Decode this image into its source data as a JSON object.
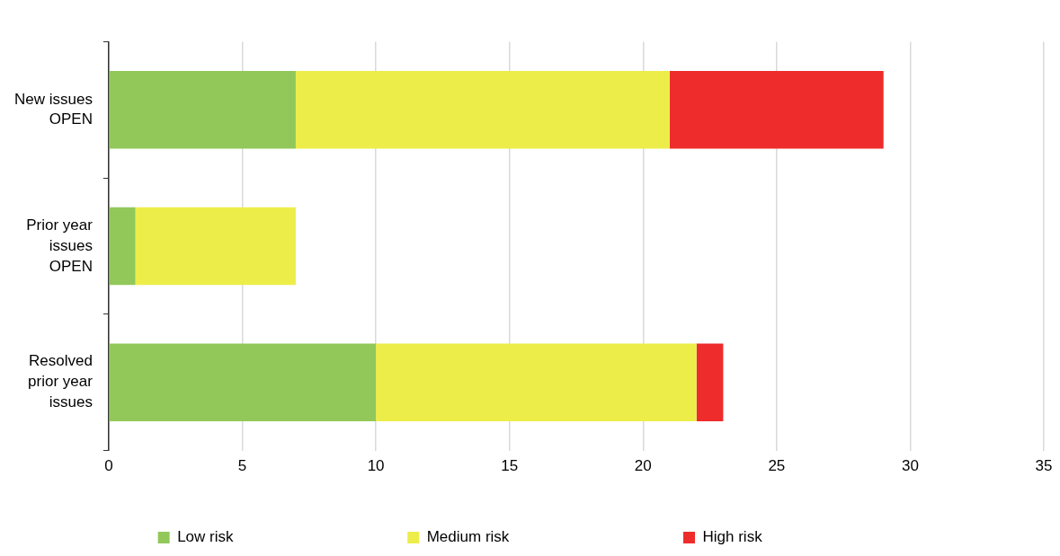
{
  "chart_data": {
    "type": "bar",
    "orientation": "horizontal",
    "stacked": true,
    "categories": [
      "New issues OPEN",
      "Prior year issues OPEN",
      "Resolved prior year issues"
    ],
    "series": [
      {
        "name": "Low risk",
        "color": "#92c85a",
        "values": [
          7,
          1,
          10
        ]
      },
      {
        "name": "Medium risk",
        "color": "#eded4a",
        "values": [
          14,
          6,
          12
        ]
      },
      {
        "name": "High risk",
        "color": "#ee2c2c",
        "values": [
          8,
          0,
          1
        ]
      }
    ],
    "xlim": [
      0,
      35
    ],
    "xticks": [
      0,
      5,
      10,
      15,
      20,
      25,
      30,
      35
    ],
    "grid": "x",
    "legend": "bottom"
  }
}
